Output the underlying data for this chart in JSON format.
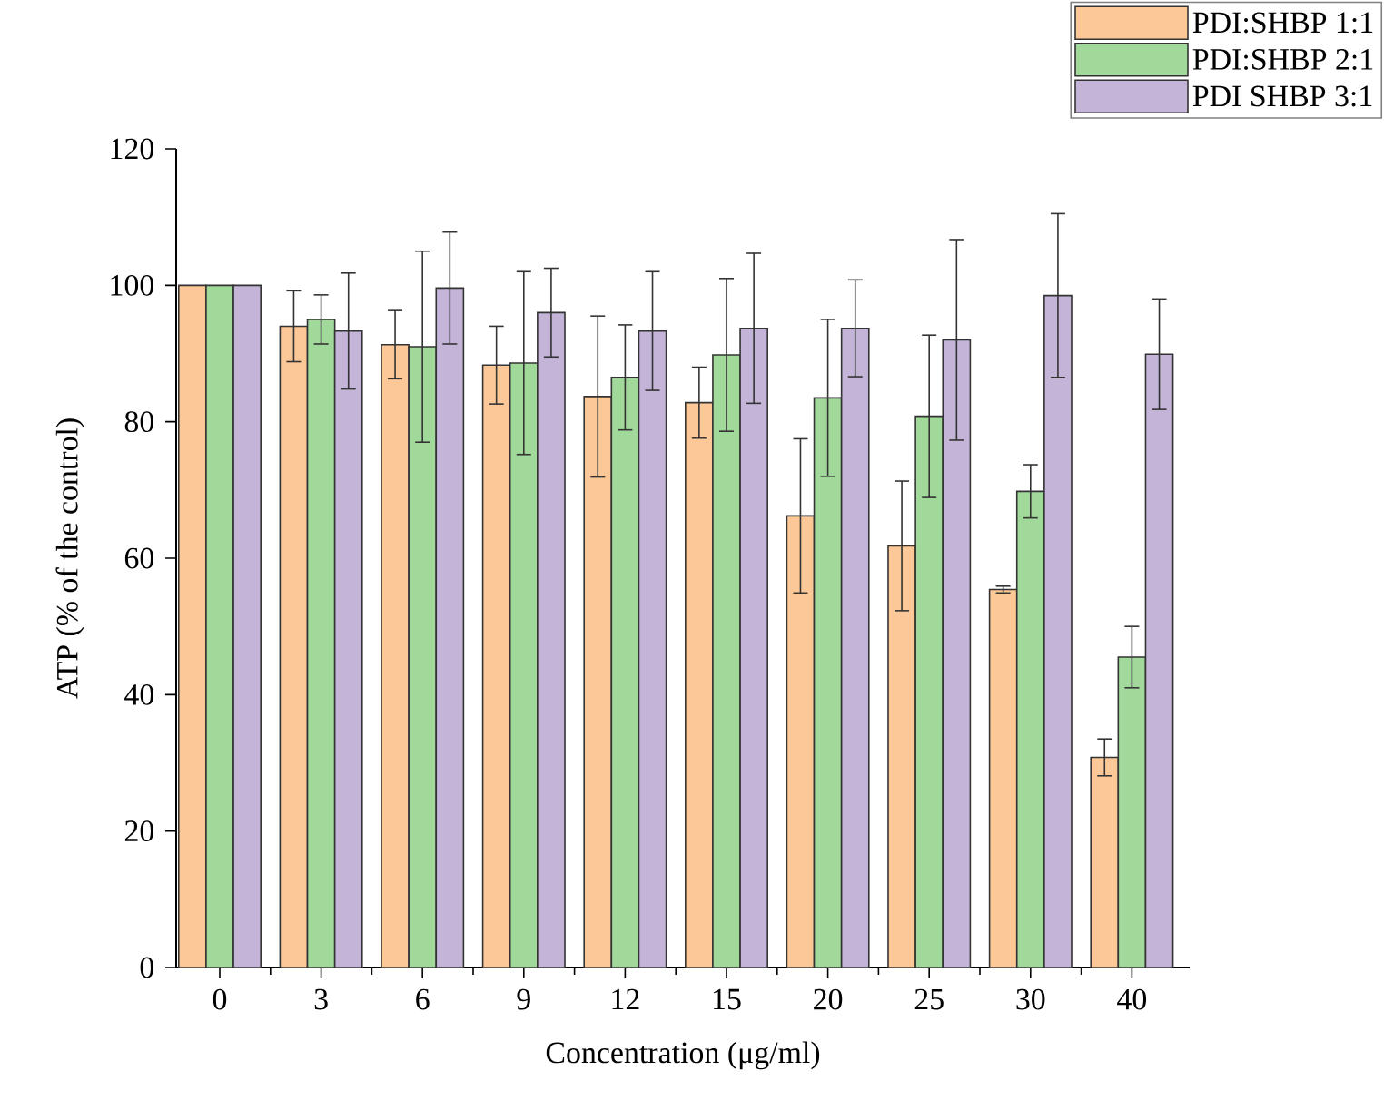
{
  "chart_data": {
    "type": "bar",
    "xlabel": "Concentration (μg/ml)",
    "ylabel": "ATP (% of the control)",
    "categories": [
      "0",
      "3",
      "6",
      "9",
      "12",
      "15",
      "20",
      "25",
      "30",
      "40"
    ],
    "series": [
      {
        "name": "PDI:SHBP 1:1",
        "color": "#fdc897",
        "values": [
          100,
          94,
          91.3,
          88.3,
          83.7,
          82.8,
          66.2,
          61.8,
          55.4,
          30.8
        ],
        "errors": [
          null,
          5.2,
          5,
          5.7,
          11.8,
          5.2,
          11.3,
          9.5,
          0.5,
          2.7
        ]
      },
      {
        "name": "PDI:SHBP 2:1",
        "color": "#a1d99b",
        "values": [
          100,
          95,
          91,
          88.6,
          86.5,
          89.8,
          83.5,
          80.8,
          69.8,
          45.5
        ],
        "errors": [
          null,
          3.6,
          14,
          13.4,
          7.7,
          11.2,
          11.5,
          11.9,
          3.9,
          4.5
        ]
      },
      {
        "name": "PDI SHBP 3:1",
        "color": "#c3b4d8",
        "values": [
          100,
          93.3,
          99.6,
          96,
          93.3,
          93.7,
          93.7,
          92,
          98.5,
          89.9
        ],
        "errors": [
          null,
          8.5,
          8.2,
          6.5,
          8.7,
          11,
          7.1,
          14.7,
          12,
          8.1
        ]
      }
    ],
    "ylim": [
      0,
      120
    ],
    "yticks": [
      0,
      20,
      40,
      60,
      80,
      100,
      120
    ],
    "legend": "top right"
  }
}
